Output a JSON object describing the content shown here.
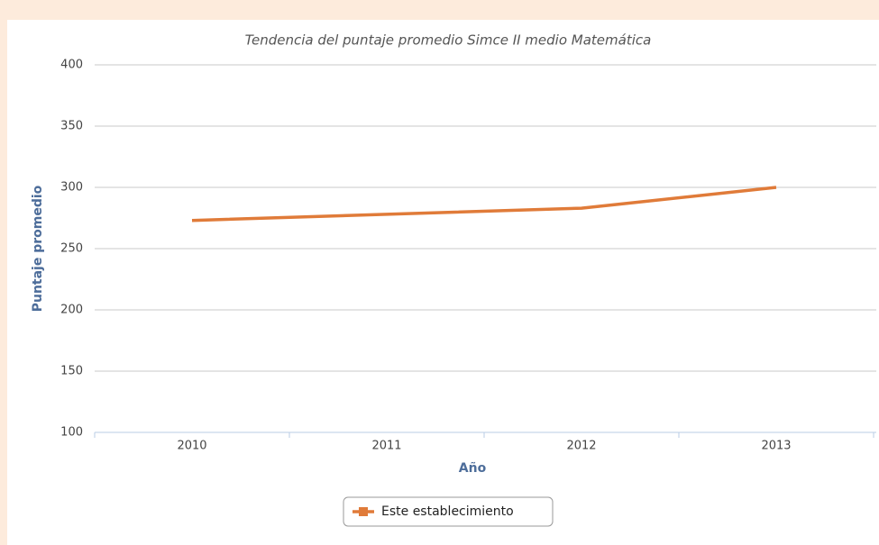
{
  "chart_data": {
    "type": "line",
    "title": "Tendencia del puntaje promedio Simce II medio Matemática",
    "x_label": "Año",
    "y_label": "Puntaje promedio",
    "categories": [
      "2010",
      "2011",
      "2012",
      "2013"
    ],
    "series": [
      {
        "name": "Este establecimiento",
        "color": "#e07b39",
        "values": [
          273,
          278,
          283,
          300
        ]
      }
    ],
    "ylim": [
      100,
      400
    ],
    "yticks": [
      100,
      150,
      200,
      250,
      300,
      350,
      400
    ],
    "grid": true,
    "legend": "bottom"
  }
}
